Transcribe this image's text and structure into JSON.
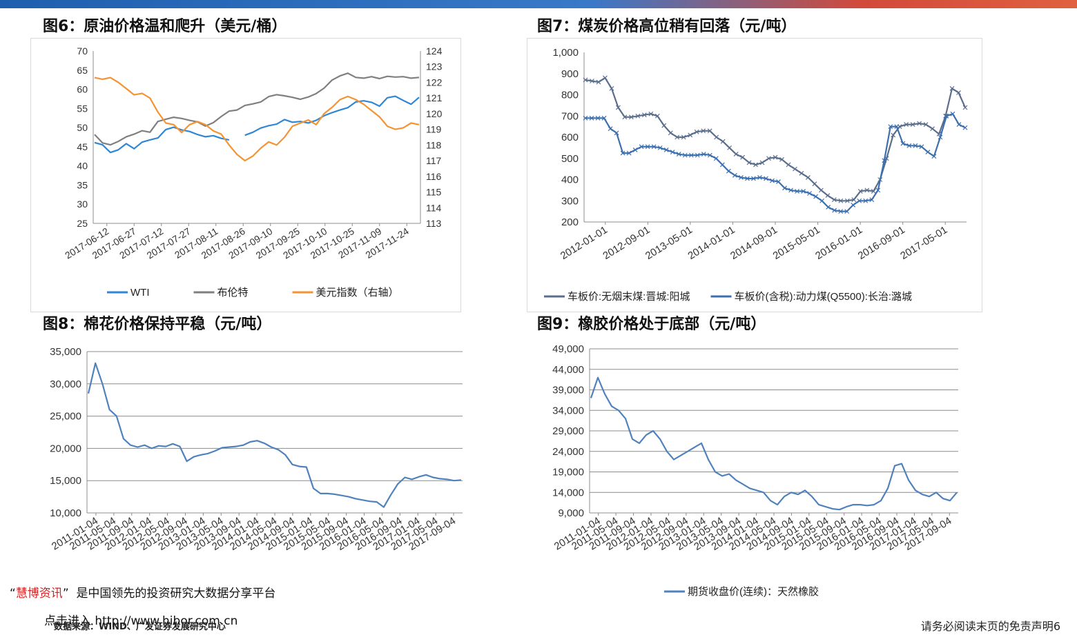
{
  "footer": {
    "brand": "慧博资讯",
    "slogan": "是中国领先的投资研究大数据分享平台",
    "link": "点击进入 http://www.hibor.com.cn",
    "source": "数据来源：WIND、广发证券发展研究中心",
    "disclaimer": "请务必阅读末页的免责声明",
    "page": "6"
  },
  "charts": [
    {
      "title": "图6：原油价格温和爬升（美元/桶）",
      "chart_data": {
        "type": "line",
        "y_ticks": [
          "70",
          "65",
          "60",
          "55",
          "50",
          "45",
          "40",
          "35",
          "30",
          "25"
        ],
        "y2_ticks": [
          "124",
          "123",
          "122",
          "121",
          "120",
          "119",
          "118",
          "117",
          "116",
          "115",
          "114",
          "113"
        ],
        "ylim": [
          25,
          70
        ],
        "y2lim": [
          113,
          124
        ],
        "x_ticks": [
          "2017-06-12",
          "2017-06-27",
          "2017-07-12",
          "2017-07-27",
          "2017-08-11",
          "2017-08-26",
          "2017-09-10",
          "2017-09-25",
          "2017-10-10",
          "2017-10-25",
          "2017-11-09",
          "2017-11-24"
        ],
        "legend": [
          "WTI",
          "布伦特",
          "美元指数（右轴）"
        ],
        "colors": [
          "#2e86d6",
          "#7f7f7f",
          "#f59331"
        ],
        "series": [
          {
            "name": "WTI",
            "axis": "left",
            "values": [
              46.1,
              45.5,
              43.5,
              44.2,
              45.8,
              44.5,
              46.2,
              46.8,
              47.3,
              49.5,
              50.1,
              49.4,
              49.0,
              48.2,
              47.6,
              47.9,
              47.2,
              46.8,
              null,
              48.0,
              48.8,
              49.9,
              50.5,
              50.9,
              52.1,
              51.4,
              51.6,
              51.2,
              51.9,
              53.1,
              53.9,
              54.6,
              55.2,
              56.7,
              57.0,
              56.6,
              55.6,
              57.8,
              58.2,
              57.1,
              56.1,
              57.9
            ]
          },
          {
            "name": "布伦特",
            "axis": "left",
            "values": [
              48.2,
              46.0,
              45.5,
              46.4,
              47.6,
              48.3,
              49.2,
              48.8,
              51.6,
              52.2,
              52.7,
              52.4,
              51.9,
              51.5,
              50.4,
              51.3,
              52.9,
              54.3,
              54.6,
              55.8,
              56.2,
              56.7,
              58.1,
              58.6,
              58.3,
              57.9,
              57.4,
              58.0,
              58.9,
              60.3,
              62.4,
              63.5,
              64.2,
              63.1,
              62.9,
              63.3,
              62.8,
              63.4,
              63.2,
              63.3,
              62.9,
              63.1
            ]
          },
          {
            "name": "美元指数（右轴）",
            "axis": "right",
            "values": [
              122.3,
              122.2,
              122.3,
              122.0,
              121.6,
              121.2,
              121.3,
              121.0,
              120.1,
              119.4,
              119.3,
              118.8,
              119.3,
              119.5,
              119.3,
              118.9,
              118.7,
              118.0,
              117.4,
              117.0,
              117.3,
              117.8,
              118.2,
              118.0,
              118.5,
              119.2,
              119.4,
              119.6,
              119.3,
              120.0,
              120.4,
              120.9,
              121.1,
              120.9,
              120.6,
              120.2,
              119.8,
              119.2,
              119.0,
              119.1,
              119.4,
              119.3
            ]
          }
        ]
      }
    },
    {
      "title": "图7：煤炭价格高位稍有回落（元/吨）",
      "chart_data": {
        "type": "line",
        "y_ticks": [
          "1,000",
          "900",
          "800",
          "700",
          "600",
          "500",
          "400",
          "300",
          "200"
        ],
        "ylim": [
          200,
          1000
        ],
        "x_ticks": [
          "2012-01-01",
          "2012-09-01",
          "2013-05-01",
          "2014-01-01",
          "2014-09-01",
          "2015-05-01",
          "2016-01-01",
          "2016-09-01",
          "2017-05-01"
        ],
        "legend": [
          "车板价:无烟末煤:晋城:阳城",
          "车板价(含税):动力煤(Q5500):长治:潞城"
        ],
        "colors": [
          "#5a6e8c",
          "#3c6fb0"
        ],
        "series": [
          {
            "name": "车板价:无烟末煤:晋城:阳城",
            "values": [
              870,
              865,
              860,
              880,
              830,
              740,
              695,
              695,
              700,
              705,
              710,
              700,
              655,
              620,
              600,
              600,
              610,
              625,
              630,
              630,
              600,
              580,
              550,
              520,
              505,
              480,
              470,
              480,
              500,
              505,
              495,
              470,
              450,
              430,
              410,
              380,
              350,
              325,
              305,
              300,
              300,
              305,
              345,
              350,
              345,
              400,
              500,
              610,
              650,
              660,
              660,
              665,
              660,
              640,
              615,
              700,
              830,
              810,
              740
            ]
          },
          {
            "name": "车板价(含税):动力煤(Q5500):长治:潞城",
            "values": [
              690,
              690,
              690,
              690,
              640,
              620,
              525,
              525,
              540,
              555,
              555,
              555,
              550,
              540,
              530,
              520,
              515,
              515,
              515,
              520,
              515,
              500,
              470,
              440,
              420,
              410,
              405,
              405,
              410,
              405,
              395,
              390,
              360,
              350,
              345,
              345,
              335,
              320,
              300,
              270,
              255,
              250,
              250,
              280,
              300,
              300,
              305,
              350,
              490,
              650,
              650,
              570,
              560,
              560,
              555,
              530,
              510,
              600,
              700,
              710,
              660,
              645
            ]
          }
        ]
      }
    },
    {
      "title": "图8：棉花价格保持平稳（元/吨）",
      "chart_data": {
        "type": "line",
        "y_ticks": [
          "35,000",
          "30,000",
          "25,000",
          "20,000",
          "15,000",
          "10,000"
        ],
        "ylim": [
          10000,
          35000
        ],
        "x_ticks": [
          "2011-01-04",
          "2011-05-04",
          "2011-09-04",
          "2012-01-04",
          "2012-05-04",
          "2012-09-04",
          "2013-01-04",
          "2013-05-04",
          "2013-09-04",
          "2014-01-04",
          "2014-05-04",
          "2014-09-04",
          "2015-01-04",
          "2015-05-04",
          "2015-09-04",
          "2016-01-04",
          "2016-05-04",
          "2016-09-04",
          "2017-01-04",
          "2017-05-04",
          "2017-09-04"
        ],
        "colors": [
          "#4f81bd"
        ],
        "series": [
          {
            "name": "",
            "values": [
              28500,
              33200,
              30000,
              26000,
              25000,
              21500,
              20500,
              20200,
              20500,
              20000,
              20400,
              20300,
              20700,
              20300,
              18000,
              18700,
              19000,
              19200,
              19600,
              20100,
              20200,
              20300,
              20500,
              21000,
              21200,
              20800,
              20200,
              19800,
              19000,
              17500,
              17200,
              17100,
              13800,
              13000,
              13000,
              12900,
              12700,
              12500,
              12200,
              12000,
              11800,
              11700,
              10900,
              12800,
              14500,
              15500,
              15200,
              15600,
              15900,
              15500,
              15300,
              15200,
              15000,
              15100
            ]
          }
        ]
      }
    },
    {
      "title": "图9：橡胶价格处于底部（元/吨）",
      "chart_data": {
        "type": "line",
        "y_ticks": [
          "49,000",
          "44,000",
          "39,000",
          "34,000",
          "29,000",
          "24,000",
          "19,000",
          "14,000",
          "9,000"
        ],
        "ylim": [
          9000,
          49000
        ],
        "x_ticks": [
          "2011-01-04",
          "2011-05-04",
          "2011-09-04",
          "2012-01-04",
          "2012-05-04",
          "2012-09-04",
          "2013-01-04",
          "2013-05-04",
          "2013-09-04",
          "2014-01-04",
          "2014-05-04",
          "2014-09-04",
          "2015-01-04",
          "2015-05-04",
          "2015-09-04",
          "2016-01-04",
          "2016-05-04",
          "2016-09-04",
          "2017-01-04",
          "2017-05-04",
          "2017-09-04"
        ],
        "legend": [
          "期货收盘价(连续)：天然橡胶"
        ],
        "colors": [
          "#4f81bd"
        ],
        "series": [
          {
            "name": "期货收盘价(连续)：天然橡胶",
            "values": [
              37000,
              42000,
              38000,
              35000,
              34000,
              32000,
              27000,
              26000,
              28000,
              29000,
              27000,
              24000,
              22000,
              23000,
              24000,
              25000,
              26000,
              22000,
              19000,
              18000,
              18500,
              17000,
              16000,
              15000,
              14500,
              14000,
              12000,
              11000,
              13000,
              14000,
              13500,
              14500,
              13000,
              11000,
              10500,
              10000,
              9800,
              10500,
              11000,
              11000,
              10800,
              11000,
              12000,
              15000,
              20500,
              21000,
              17000,
              14500,
              13500,
              13000,
              14000,
              12500,
              12000,
              14000
            ]
          }
        ]
      }
    }
  ]
}
